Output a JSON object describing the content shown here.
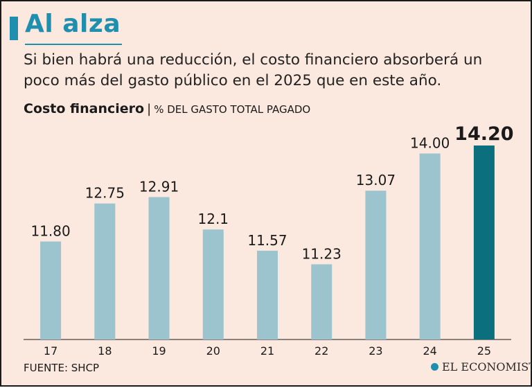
{
  "header": {
    "title": "Al alza",
    "subtitle": "Si bien habrá una reducción, el costo financiero absorberá un poco más del gasto público en el 2025 que en este año."
  },
  "chart_label": {
    "main": "Costo financiero",
    "separator": "|",
    "unit": "% DEL GASTO TOTAL PAGADO"
  },
  "footer": {
    "source": "FUENTE: SHCP",
    "brand": "EL ECONOMISTA",
    "brand_icon": "el-economista-logo-icon"
  },
  "colors": {
    "bar": "#9bc4ce",
    "highlight_bar": "#0b6f7e",
    "title": "#1e8fae",
    "background": "#fbe8de"
  },
  "chart_data": {
    "type": "bar",
    "title": "Costo financiero",
    "ylabel": "% DEL GASTO TOTAL PAGADO",
    "xlabel": "",
    "categories": [
      "17",
      "18",
      "19",
      "20",
      "21",
      "22",
      "23",
      "24",
      "25"
    ],
    "values": [
      11.8,
      12.75,
      12.91,
      12.1,
      11.57,
      11.23,
      13.07,
      14.0,
      14.2
    ],
    "labels": [
      "11.80",
      "12.75",
      "12.91",
      "12.1",
      "11.57",
      "11.23",
      "13.07",
      "14.00",
      "14.20"
    ],
    "highlight": [
      "25"
    ],
    "ylim": [
      9.35,
      14.2
    ],
    "grid": false
  }
}
